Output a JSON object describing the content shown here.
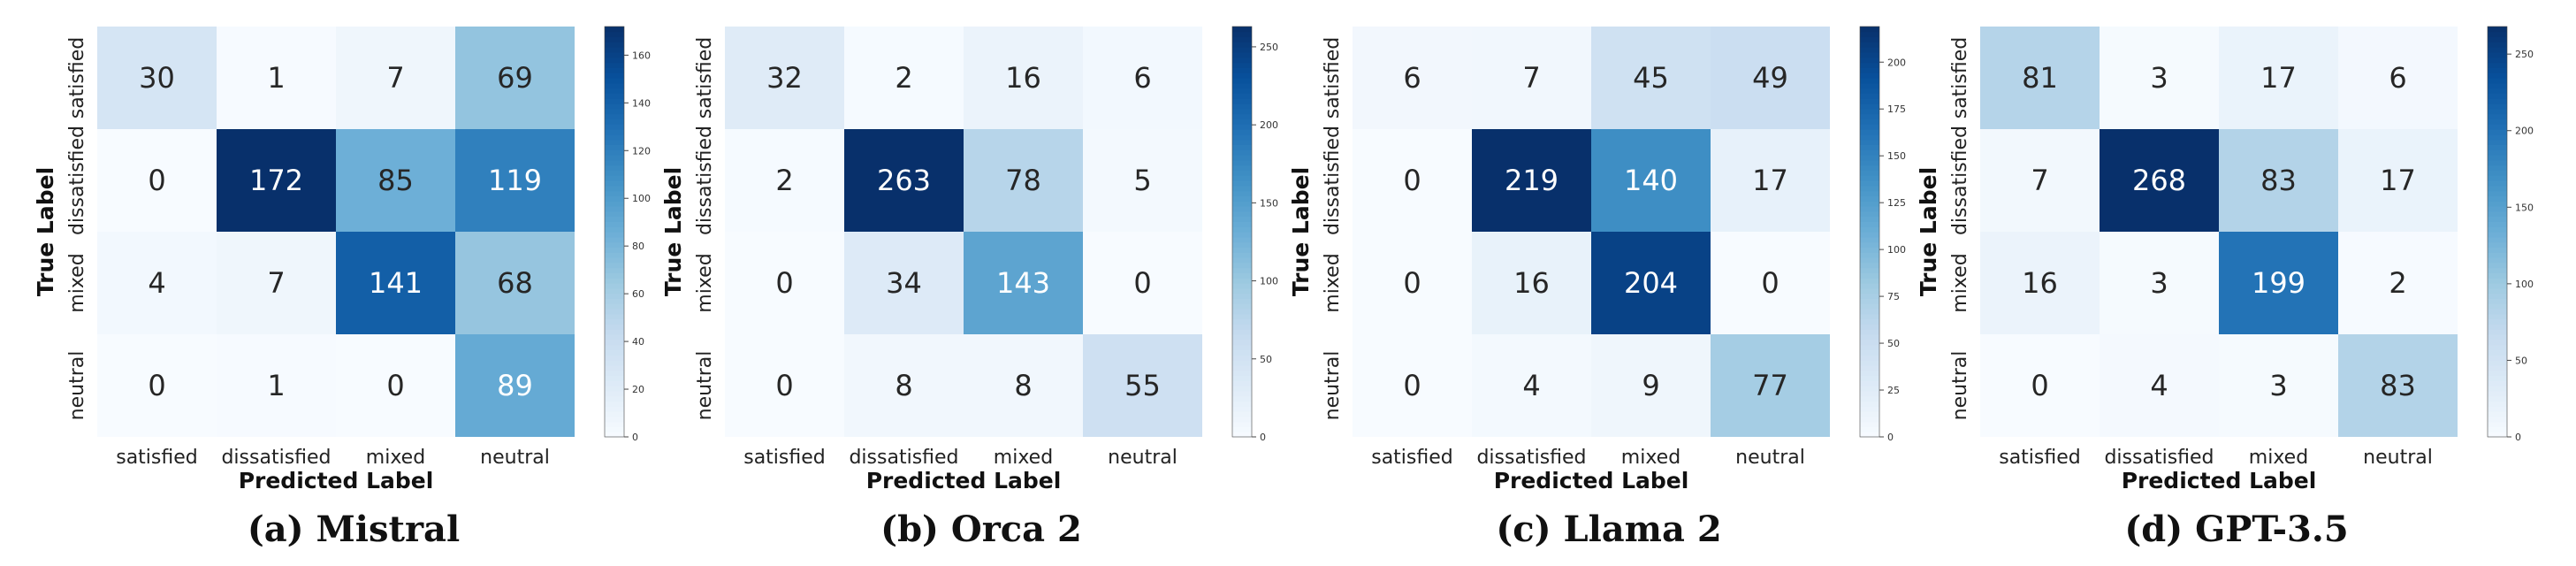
{
  "labels": [
    "satisfied",
    "dissatisfied",
    "mixed",
    "neutral"
  ],
  "xlabel": "Predicted Label",
  "ylabel": "True Label",
  "chart_data": [
    {
      "type": "heatmap",
      "caption": "(a) Mistral",
      "matrix": [
        [
          30,
          1,
          7,
          69
        ],
        [
          0,
          172,
          85,
          119
        ],
        [
          4,
          7,
          141,
          68
        ],
        [
          0,
          1,
          0,
          89
        ]
      ],
      "vmin": 0,
      "vmax": 172,
      "colorbar_ticks": [
        0,
        20,
        40,
        60,
        80,
        100,
        120,
        140,
        160
      ]
    },
    {
      "type": "heatmap",
      "caption": "(b) Orca 2",
      "matrix": [
        [
          32,
          2,
          16,
          6
        ],
        [
          2,
          263,
          78,
          5
        ],
        [
          0,
          34,
          143,
          0
        ],
        [
          0,
          8,
          8,
          55
        ]
      ],
      "vmin": 0,
      "vmax": 263,
      "colorbar_ticks": [
        0,
        50,
        100,
        150,
        200,
        250
      ]
    },
    {
      "type": "heatmap",
      "caption": "(c) Llama 2",
      "matrix": [
        [
          6,
          7,
          45,
          49
        ],
        [
          0,
          219,
          140,
          17
        ],
        [
          0,
          16,
          204,
          0
        ],
        [
          0,
          4,
          9,
          77
        ]
      ],
      "vmin": 0,
      "vmax": 219,
      "colorbar_ticks": [
        0,
        25,
        50,
        75,
        100,
        125,
        150,
        175,
        200
      ]
    },
    {
      "type": "heatmap",
      "caption": "(d) GPT-3.5",
      "matrix": [
        [
          81,
          3,
          17,
          6
        ],
        [
          7,
          268,
          83,
          17
        ],
        [
          16,
          3,
          199,
          2
        ],
        [
          0,
          4,
          3,
          83
        ]
      ],
      "vmin": 0,
      "vmax": 268,
      "colorbar_ticks": [
        0,
        50,
        100,
        150,
        200,
        250
      ]
    }
  ]
}
